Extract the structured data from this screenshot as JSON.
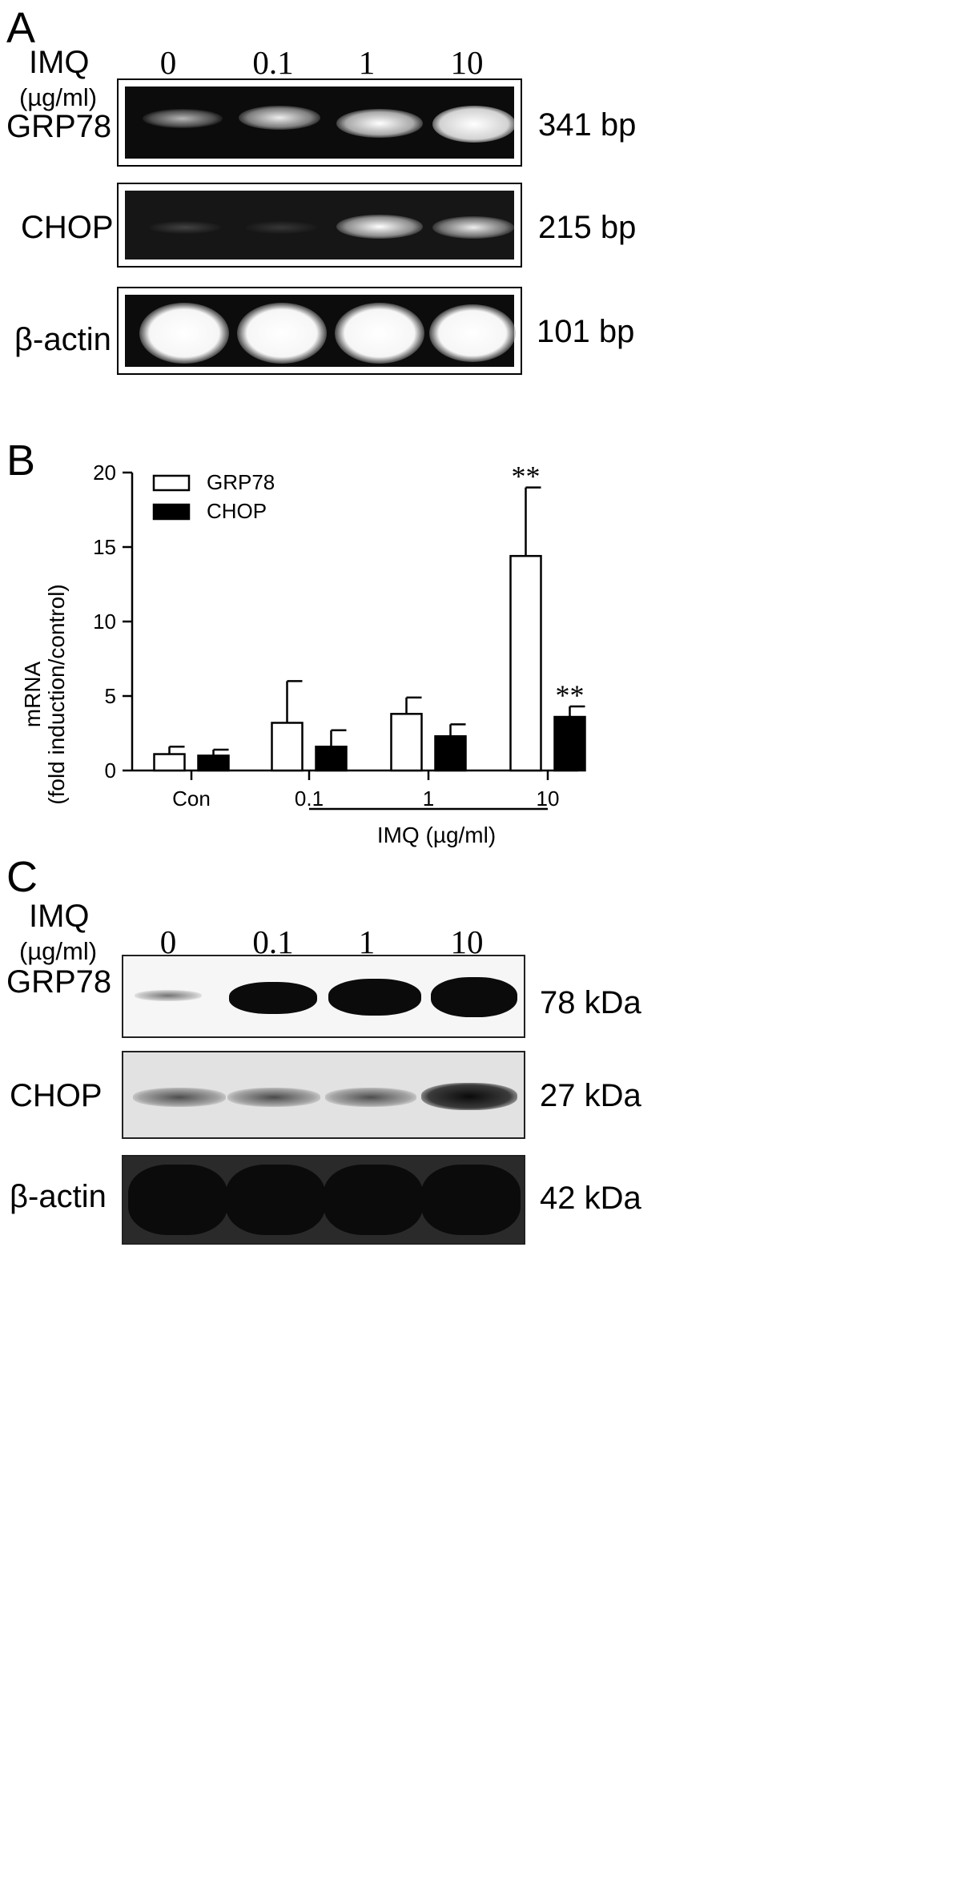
{
  "panel_a": {
    "letter": "A",
    "treatment_label": "IMQ",
    "unit_label": "(µg/ml)",
    "lanes": [
      "0",
      "0.1",
      "1",
      "10"
    ],
    "rows": [
      {
        "name": "GRP78",
        "size": "341 bp",
        "band_intensity": [
          0.45,
          0.7,
          0.85,
          1.0
        ]
      },
      {
        "name": "CHOP",
        "size": "215 bp",
        "band_intensity": [
          0.15,
          0.12,
          0.85,
          0.75
        ]
      },
      {
        "name": "β-actin",
        "size": "101 bp",
        "band_intensity": [
          1.0,
          1.0,
          1.0,
          1.0
        ]
      }
    ]
  },
  "panel_b": {
    "letter": "B",
    "chart_data": {
      "type": "bar",
      "categories": [
        "Con",
        "0.1",
        "1",
        "10"
      ],
      "series": [
        {
          "name": "GRP78",
          "color": "#ffffff",
          "values": [
            1.1,
            3.2,
            3.8,
            14.4
          ],
          "errors": [
            0.5,
            2.8,
            1.1,
            4.6
          ],
          "significance": [
            "",
            "",
            "",
            "**"
          ]
        },
        {
          "name": "CHOP",
          "color": "#000000",
          "values": [
            1.0,
            1.6,
            2.3,
            3.6
          ],
          "errors": [
            0.4,
            1.1,
            0.8,
            0.7
          ],
          "significance": [
            "",
            "",
            "",
            "**"
          ]
        }
      ],
      "ylabel_line1": "mRNA",
      "ylabel_line2": "(fold induction/control)",
      "xlabel": "IMQ (µg/ml)",
      "ylim": [
        0,
        20
      ],
      "yticks": [
        "0",
        "5",
        "10",
        "15",
        "20"
      ],
      "legend_position": "top-left",
      "grid": false
    }
  },
  "panel_c": {
    "letter": "C",
    "treatment_label": "IMQ",
    "unit_label": "(µg/ml)",
    "lanes": [
      "0",
      "0.1",
      "1",
      "10"
    ],
    "rows": [
      {
        "name": "GRP78",
        "size": "78 kDa",
        "band_intensity": [
          0.25,
          0.9,
          0.95,
          1.0
        ]
      },
      {
        "name": "CHOP",
        "size": "27 kDa",
        "band_intensity": [
          0.6,
          0.65,
          0.6,
          0.95
        ]
      },
      {
        "name": "β-actin",
        "size": "42 kDa",
        "band_intensity": [
          1.0,
          1.0,
          1.0,
          1.0
        ]
      }
    ]
  }
}
